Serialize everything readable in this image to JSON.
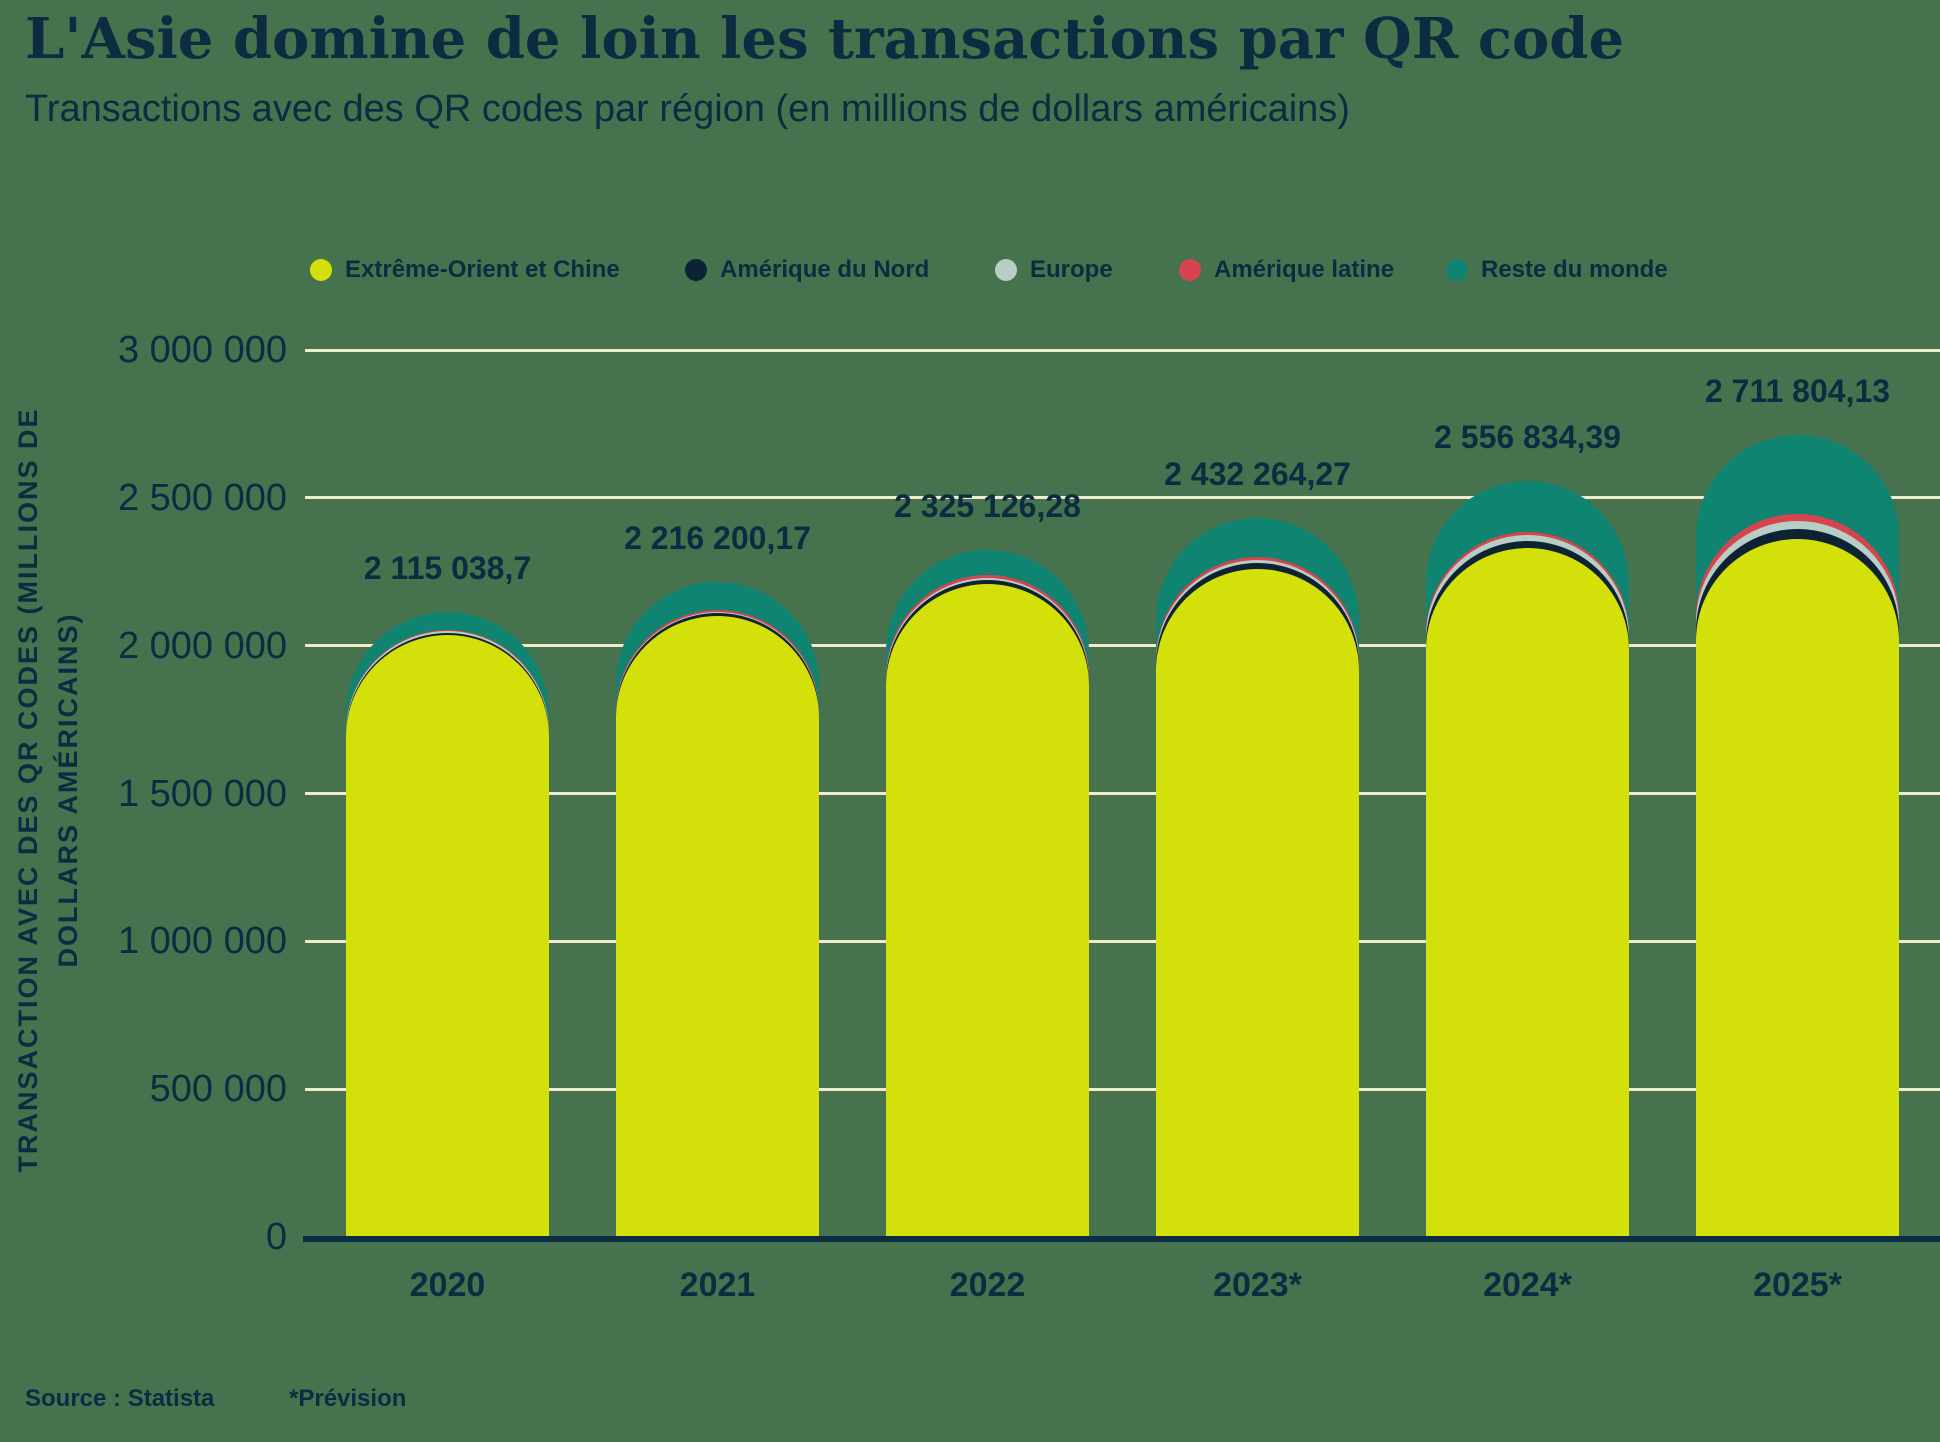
{
  "title": "L'Asie domine de loin les transactions par QR code",
  "subtitle": "Transactions avec des QR codes par région (en millions de dollars américains)",
  "colors": {
    "background": "#47724E",
    "text": "#0D2C42",
    "gridline": "#EFEBCB",
    "axis_line": "#0D2C42"
  },
  "legend": [
    {
      "label": "Extrême-Orient et Chine",
      "color": "#D4E00A"
    },
    {
      "label": "Amérique du Nord",
      "color": "#0D2232"
    },
    {
      "label": "Europe",
      "color": "#B7CEC7"
    },
    {
      "label": "Amérique latine",
      "color": "#D8444E"
    },
    {
      "label": "Reste du monde",
      "color": "#0F8470"
    }
  ],
  "chart_data": {
    "type": "bar",
    "stacked": true,
    "grid": true,
    "legend_position": "top",
    "categories": [
      "2020",
      "2021",
      "2022",
      "2023*",
      "2024*",
      "2025*"
    ],
    "series": [
      {
        "name": "Extrême-Orient et Chine",
        "color": "#D4E00A",
        "values": [
          2035000,
          2100000,
          2210000,
          2260000,
          2330000,
          2360000
        ]
      },
      {
        "name": "Amérique du Nord",
        "color": "#0D2232",
        "values": [
          8000,
          9000,
          12000,
          20000,
          25000,
          35000
        ]
      },
      {
        "name": "Europe",
        "color": "#B7CEC7",
        "values": [
          5000,
          6000,
          8000,
          10000,
          20000,
          25000
        ]
      },
      {
        "name": "Amérique latine",
        "color": "#D8444E",
        "values": [
          5000,
          6000,
          8000,
          10000,
          10000,
          25000
        ]
      },
      {
        "name": "Reste du monde",
        "color": "#0F8470",
        "values": [
          62038.7,
          95200.17,
          87126.28,
          132264.27,
          171834.39,
          266804.13
        ]
      }
    ],
    "totals": [
      2115038.7,
      2216200.17,
      2325126.28,
      2432264.27,
      2556834.39,
      2711804.13
    ],
    "total_labels": [
      "2 115 038,7",
      "2 216 200,17",
      "2 325 126,28",
      "2 432 264,27",
      "2 556 834,39",
      "2 711 804,13"
    ],
    "ylabel_lines": [
      "TRANSACTION AVEC DES QR CODES (MILLIONS DE",
      "DOLLARS AMÉRICAINS)"
    ],
    "ylabel": "TRANSACTION AVEC DES QR CODES (MILLIONS DE DOLLARS AMÉRICAINS)",
    "ylim": [
      0,
      3000000
    ],
    "yticks": [
      0,
      500000,
      1000000,
      1500000,
      2000000,
      2500000,
      3000000
    ],
    "ytick_labels": [
      "0",
      "500 000",
      "1 000 000",
      "1 500 000",
      "2 000 000",
      "2 500 000",
      "3 000 000"
    ]
  },
  "footer": {
    "source": "Source : Statista",
    "note": "*Prévision"
  }
}
